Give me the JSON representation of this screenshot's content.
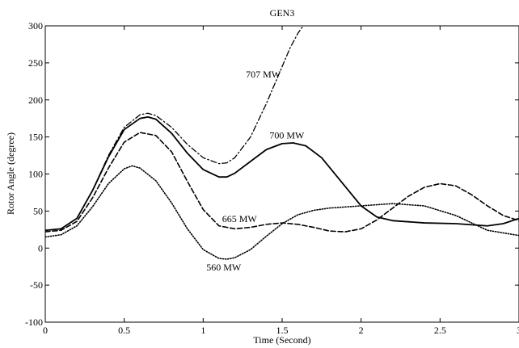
{
  "chart_data": {
    "type": "line",
    "title": "GEN3",
    "xlabel": "Time (Second)",
    "ylabel": "Rotor Angle (degree)",
    "xlim": [
      0,
      3
    ],
    "ylim": [
      -100,
      300
    ],
    "xticks": [
      "0",
      "0.5",
      "1",
      "1.5",
      "2",
      "2.5",
      "3"
    ],
    "yticks": [
      "-100",
      "-50",
      "0",
      "50",
      "100",
      "150",
      "200",
      "250",
      "300"
    ],
    "grid": false,
    "series": [
      {
        "name": "707 MW",
        "style": "dashdot",
        "x": [
          0,
          0.1,
          0.2,
          0.3,
          0.4,
          0.5,
          0.6,
          0.65,
          0.7,
          0.8,
          0.9,
          1.0,
          1.1,
          1.15,
          1.2,
          1.3,
          1.4,
          1.5,
          1.55,
          1.6,
          1.65,
          1.7
        ],
        "y": [
          24,
          26,
          40,
          78,
          125,
          163,
          180,
          182,
          179,
          163,
          140,
          122,
          114,
          115,
          122,
          150,
          195,
          245,
          270,
          290,
          305,
          325
        ]
      },
      {
        "name": "700 MW",
        "style": "solid",
        "x": [
          0,
          0.1,
          0.2,
          0.3,
          0.4,
          0.5,
          0.6,
          0.65,
          0.7,
          0.8,
          0.9,
          1.0,
          1.1,
          1.15,
          1.2,
          1.3,
          1.4,
          1.5,
          1.57,
          1.65,
          1.75,
          1.85,
          2.0,
          2.1,
          2.2,
          2.4,
          2.6,
          2.8,
          2.9,
          3.0
        ],
        "y": [
          24,
          26,
          40,
          78,
          123,
          160,
          175,
          177,
          174,
          155,
          128,
          106,
          96,
          96,
          101,
          117,
          133,
          141,
          142,
          138,
          122,
          96,
          57,
          42,
          37,
          34,
          33,
          30,
          33,
          40
        ]
      },
      {
        "name": "665 MW",
        "style": "dashed",
        "x": [
          0,
          0.1,
          0.2,
          0.3,
          0.4,
          0.5,
          0.6,
          0.7,
          0.8,
          0.9,
          1.0,
          1.1,
          1.2,
          1.3,
          1.4,
          1.5,
          1.6,
          1.7,
          1.8,
          1.9,
          2.0,
          2.1,
          2.2,
          2.3,
          2.4,
          2.5,
          2.6,
          2.7,
          2.8,
          2.9,
          3.0
        ],
        "y": [
          22,
          24,
          36,
          68,
          108,
          143,
          156,
          152,
          130,
          90,
          52,
          30,
          26,
          28,
          32,
          34,
          32,
          28,
          23,
          22,
          26,
          38,
          54,
          70,
          82,
          87,
          84,
          72,
          57,
          44,
          37
        ]
      },
      {
        "name": "560 MW",
        "style": "dotted",
        "x": [
          0,
          0.1,
          0.2,
          0.3,
          0.4,
          0.5,
          0.55,
          0.6,
          0.7,
          0.8,
          0.9,
          1.0,
          1.1,
          1.15,
          1.2,
          1.3,
          1.4,
          1.5,
          1.6,
          1.7,
          1.8,
          2.0,
          2.2,
          2.4,
          2.6,
          2.8,
          3.0
        ],
        "y": [
          15,
          18,
          30,
          56,
          87,
          107,
          111,
          108,
          91,
          61,
          26,
          -2,
          -14,
          -15,
          -13,
          -2,
          16,
          33,
          45,
          51,
          54,
          57,
          60,
          57,
          44,
          24,
          17
        ]
      }
    ],
    "annotations": [
      {
        "text": "707 MW",
        "x": 1.27,
        "y": 230
      },
      {
        "text": "700 MW",
        "x": 1.42,
        "y": 148
      },
      {
        "text": "665 MW",
        "x": 1.12,
        "y": 35
      },
      {
        "text": "560 MW",
        "x": 1.02,
        "y": -30
      }
    ]
  }
}
